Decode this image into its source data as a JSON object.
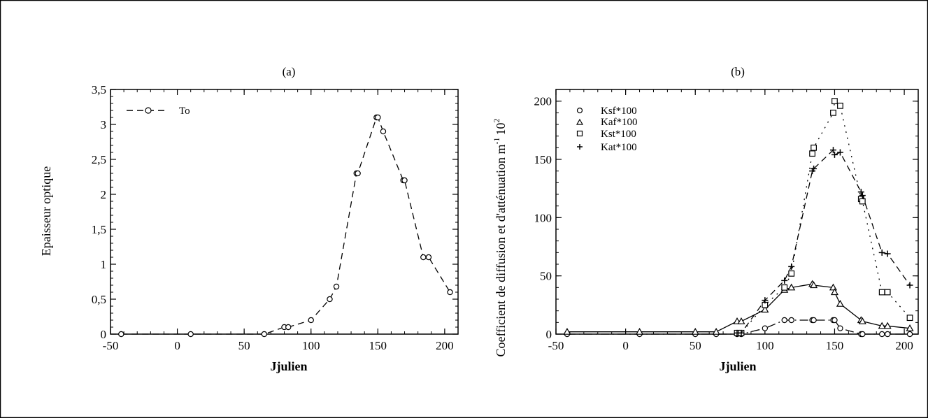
{
  "chart_data": [
    {
      "type": "line",
      "title": "(a)",
      "xlabel": "Jjulien",
      "ylabel": "Epaisseur optique",
      "xlim": [
        -50,
        210
      ],
      "ylim": [
        0,
        3.5
      ],
      "xticks": [
        "-50",
        "0",
        "50",
        "100",
        "150",
        "200"
      ],
      "yticks": [
        "0",
        "0,5",
        "1",
        "1,5",
        "2",
        "2,5",
        "3",
        "3,5"
      ],
      "legend_position": "top-left",
      "series": [
        {
          "name": "To",
          "marker": "circle",
          "linestyle": "dashed",
          "x": [
            -42,
            10,
            65,
            80,
            83,
            100,
            114,
            119,
            134,
            135,
            149,
            150,
            154,
            169,
            170,
            184,
            188,
            204
          ],
          "y": [
            0,
            0,
            0,
            0.1,
            0.1,
            0.2,
            0.5,
            0.68,
            2.3,
            2.3,
            3.1,
            3.1,
            2.9,
            2.2,
            2.2,
            1.1,
            1.1,
            0.6
          ]
        }
      ]
    },
    {
      "type": "line",
      "title": "(b)",
      "xlabel": "Jjulien",
      "ylabel": "Coefficient de diffusion et d'atténuation m",
      "ylabel_sup_a": "-1",
      "ylabel_mid": "10",
      "ylabel_sup_b": "2",
      "xlim": [
        -50,
        210
      ],
      "ylim": [
        0,
        210
      ],
      "xticks": [
        "-50",
        "0",
        "50",
        "100",
        "150",
        "200"
      ],
      "yticks": [
        "0",
        "50",
        "100",
        "150",
        "200"
      ],
      "legend_position": "top-left",
      "series": [
        {
          "name": "Ksf*100",
          "marker": "circle",
          "linestyle": "dash-dot",
          "x": [
            -42,
            10,
            50,
            65,
            80,
            83,
            100,
            114,
            119,
            134,
            135,
            149,
            150,
            154,
            169,
            170,
            184,
            188,
            204
          ],
          "y": [
            0,
            0,
            0,
            0,
            0,
            0,
            5,
            12,
            12,
            12,
            12,
            12,
            12,
            5,
            0,
            0,
            0,
            0,
            0
          ]
        },
        {
          "name": "Kaf*100",
          "marker": "triangle",
          "linestyle": "solid",
          "x": [
            -42,
            10,
            50,
            65,
            80,
            83,
            100,
            114,
            119,
            134,
            135,
            149,
            150,
            154,
            169,
            170,
            184,
            188,
            204
          ],
          "y": [
            2,
            2,
            2,
            2,
            11,
            11,
            21,
            38,
            40,
            43,
            42,
            40,
            36,
            26,
            12,
            11,
            7,
            7,
            5
          ]
        },
        {
          "name": "Kst*100",
          "marker": "square",
          "linestyle": "dotted",
          "x": [
            80,
            83,
            100,
            114,
            119,
            134,
            135,
            149,
            150,
            154,
            169,
            170,
            184,
            188,
            204
          ],
          "y": [
            1,
            1,
            25,
            40,
            52,
            155,
            160,
            190,
            200,
            196,
            116,
            114,
            36,
            36,
            14
          ]
        },
        {
          "name": "Kat*100",
          "marker": "plus",
          "linestyle": "dashed",
          "x": [
            80,
            83,
            100,
            114,
            119,
            134,
            135,
            149,
            150,
            154,
            169,
            170,
            184,
            188,
            204
          ],
          "y": [
            1,
            1,
            29,
            46,
            58,
            140,
            142,
            158,
            154,
            156,
            122,
            119,
            70,
            69,
            42
          ]
        }
      ]
    }
  ]
}
